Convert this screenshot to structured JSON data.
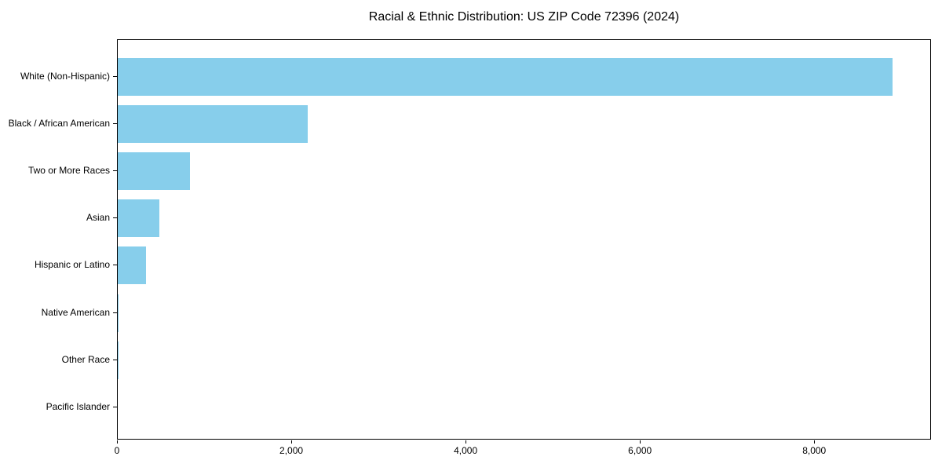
{
  "chart_data": {
    "type": "bar",
    "orientation": "horizontal",
    "title": "Racial & Ethnic Distribution: US ZIP Code 72396 (2024)",
    "xlabel": "",
    "ylabel": "",
    "categories": [
      "White (Non-Hispanic)",
      "Black / African American",
      "Two or More Races",
      "Asian",
      "Hispanic or Latino",
      "Native American",
      "Other Race",
      "Pacific Islander"
    ],
    "values": [
      8890,
      2180,
      830,
      480,
      320,
      12,
      8,
      0
    ],
    "xlim": [
      0,
      9340
    ],
    "x_ticks": [
      0,
      2000,
      4000,
      6000,
      8000
    ],
    "x_tick_labels": [
      "0",
      "2,000",
      "4,000",
      "6,000",
      "8,000"
    ],
    "bar_color": "#87ceeb",
    "grid": false,
    "legend": null
  }
}
